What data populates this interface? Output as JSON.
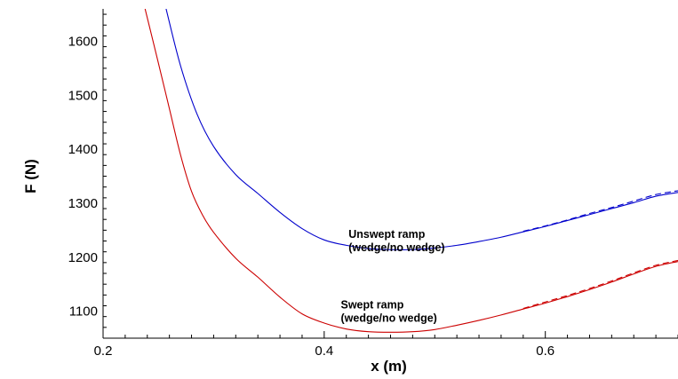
{
  "chart_data": {
    "type": "line",
    "xlabel": "x (m)",
    "ylabel": "F (N)",
    "xlim": [
      0.2,
      0.72
    ],
    "ylim": [
      1050,
      1660
    ],
    "x_ticks": [
      0.2,
      0.4,
      0.6
    ],
    "x_tick_labels": [
      "0.2",
      "0.4",
      "0.6"
    ],
    "y_ticks": [
      1100,
      1200,
      1300,
      1400,
      1500,
      1600
    ],
    "y_tick_labels": [
      "1100",
      "1200",
      "1300",
      "1400",
      "1500",
      "1600"
    ],
    "grid": false,
    "legend": "none",
    "annotations": [
      {
        "id": "unswept",
        "lines": [
          "Unswept ramp",
          "(wedge/no wedge)"
        ],
        "x": 0.422,
        "y": 1236
      },
      {
        "id": "swept",
        "lines": [
          "Swept ramp",
          "(wedge/no wedge)"
        ],
        "x": 0.415,
        "y": 1105
      }
    ],
    "series": [
      {
        "id": "unswept-wedge",
        "color": "#0000cc",
        "dash": "solid",
        "x": [
          0.257,
          0.27,
          0.285,
          0.3,
          0.32,
          0.34,
          0.36,
          0.38,
          0.4,
          0.42,
          0.44,
          0.46,
          0.48,
          0.5,
          0.52,
          0.54,
          0.56,
          0.58,
          0.6,
          0.62,
          0.64,
          0.66,
          0.68,
          0.7,
          0.72
        ],
        "y": [
          1660,
          1555,
          1465,
          1405,
          1353,
          1318,
          1283,
          1253,
          1232,
          1222,
          1216,
          1214,
          1214,
          1217,
          1222,
          1229,
          1237,
          1247,
          1257,
          1268,
          1279,
          1290,
          1301,
          1313,
          1320
        ]
      },
      {
        "id": "unswept-no-wedge",
        "color": "#0000cc",
        "dash": "dashed",
        "x": [
          0.58,
          0.6,
          0.62,
          0.64,
          0.66,
          0.68,
          0.7,
          0.72
        ],
        "y": [
          1248,
          1258,
          1269,
          1281,
          1292,
          1304,
          1316,
          1323
        ]
      },
      {
        "id": "swept-wedge",
        "color": "#cc0000",
        "dash": "solid",
        "x": [
          0.238,
          0.25,
          0.26,
          0.27,
          0.28,
          0.29,
          0.3,
          0.32,
          0.34,
          0.36,
          0.38,
          0.4,
          0.42,
          0.44,
          0.46,
          0.48,
          0.5,
          0.52,
          0.54,
          0.56,
          0.58,
          0.6,
          0.62,
          0.64,
          0.66,
          0.68,
          0.7,
          0.72
        ],
        "y": [
          1660,
          1560,
          1475,
          1390,
          1322,
          1278,
          1246,
          1198,
          1163,
          1126,
          1095,
          1078,
          1067,
          1062,
          1061,
          1062,
          1066,
          1074,
          1083,
          1093,
          1104,
          1115,
          1127,
          1140,
          1154,
          1169,
          1183,
          1192
        ]
      },
      {
        "id": "swept-no-wedge",
        "color": "#cc0000",
        "dash": "dashed",
        "x": [
          0.58,
          0.6,
          0.62,
          0.64,
          0.66,
          0.68,
          0.7,
          0.72
        ],
        "y": [
          1105,
          1117,
          1129,
          1142,
          1156,
          1171,
          1185,
          1194
        ]
      }
    ]
  }
}
